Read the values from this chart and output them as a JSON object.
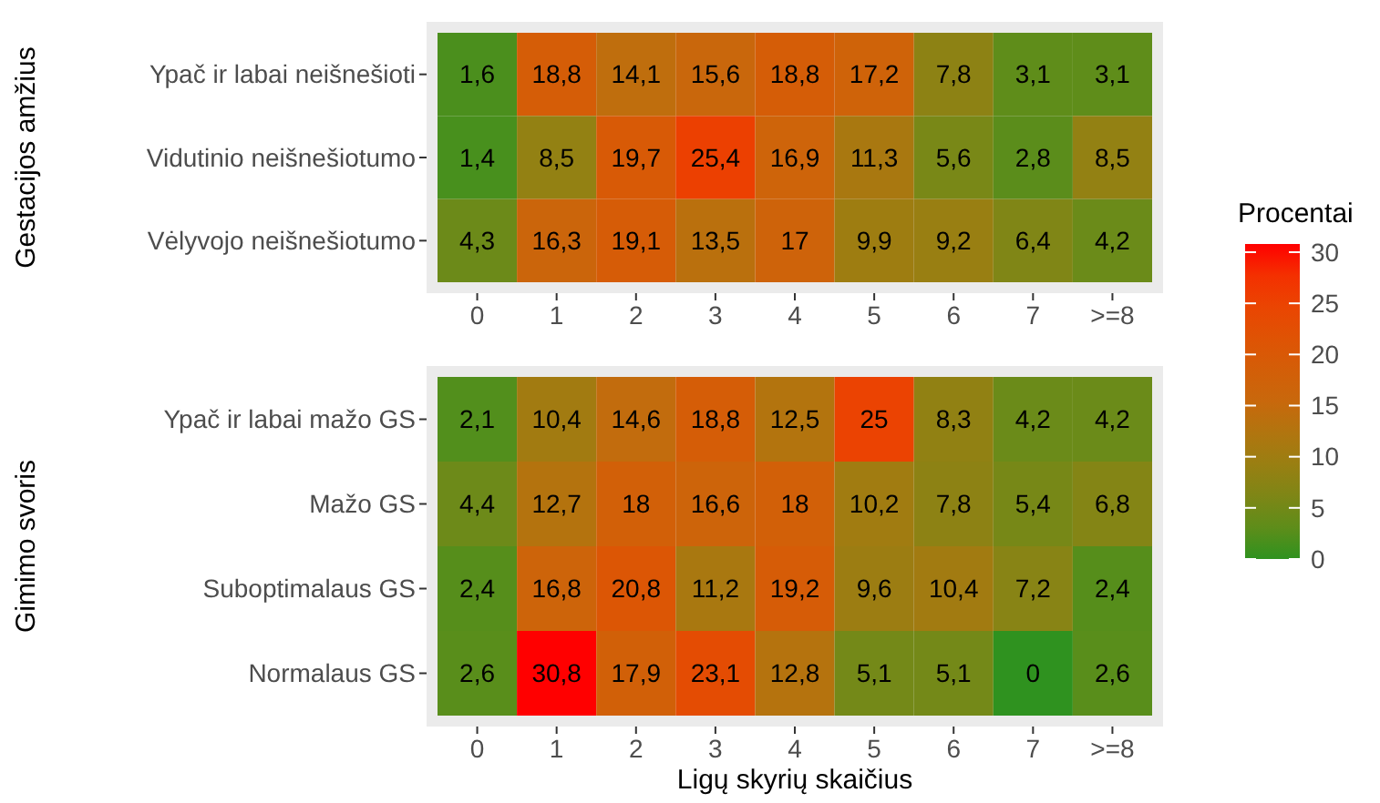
{
  "chart_data": [
    {
      "type": "heatmap",
      "ylabel": "Gestacijos amžius",
      "clabel": "Procentai",
      "clim": [
        0,
        30.8
      ],
      "cticks": [
        0,
        5,
        10,
        15,
        20,
        25,
        30
      ],
      "categories": [
        "0",
        "1",
        "2",
        "3",
        "4",
        "5",
        "6",
        "7",
        ">=8"
      ],
      "y_categories": [
        "Ypač ir labai neišnešioti",
        "Vidutinio neišnešiotumo",
        "Vėlyvojo neišnešiotumo"
      ],
      "cells": [
        [
          1.6,
          18.8,
          14.1,
          15.6,
          18.8,
          17.2,
          7.8,
          3.1,
          3.1
        ],
        [
          1.4,
          8.5,
          19.7,
          25.4,
          16.9,
          11.3,
          5.6,
          2.8,
          8.5
        ],
        [
          4.3,
          16.3,
          19.1,
          13.5,
          17,
          9.9,
          9.2,
          6.4,
          4.2
        ]
      ],
      "cell_labels": [
        [
          "1,6",
          "18,8",
          "14,1",
          "15,6",
          "18,8",
          "17,2",
          "7,8",
          "3,1",
          "3,1"
        ],
        [
          "1,4",
          "8,5",
          "19,7",
          "25,4",
          "16,9",
          "11,3",
          "5,6",
          "2,8",
          "8,5"
        ],
        [
          "4,3",
          "16,3",
          "19,1",
          "13,5",
          "17",
          "9,9",
          "9,2",
          "6,4",
          "4,2"
        ]
      ]
    },
    {
      "type": "heatmap",
      "ylabel": "Gimimo svoris",
      "xlabel": "Ligų skyrių skaičius",
      "categories": [
        "0",
        "1",
        "2",
        "3",
        "4",
        "5",
        "6",
        "7",
        ">=8"
      ],
      "y_categories": [
        "Ypač ir labai mažo GS",
        "Mažo GS",
        "Suboptimalaus GS",
        "Normalaus GS"
      ],
      "cells": [
        [
          2.1,
          10.4,
          14.6,
          18.8,
          12.5,
          25,
          8.3,
          4.2,
          4.2
        ],
        [
          4.4,
          12.7,
          18,
          16.6,
          18,
          10.2,
          7.8,
          5.4,
          6.8
        ],
        [
          2.4,
          16.8,
          20.8,
          11.2,
          19.2,
          9.6,
          10.4,
          7.2,
          2.4
        ],
        [
          2.6,
          30.8,
          17.9,
          23.1,
          12.8,
          5.1,
          5.1,
          0,
          2.6
        ]
      ],
      "cell_labels": [
        [
          "2,1",
          "10,4",
          "14,6",
          "18,8",
          "12,5",
          "25",
          "8,3",
          "4,2",
          "4,2"
        ],
        [
          "4,4",
          "12,7",
          "18",
          "16,6",
          "18",
          "10,2",
          "7,8",
          "5,4",
          "6,8"
        ],
        [
          "2,4",
          "16,8",
          "20,8",
          "11,2",
          "19,2",
          "9,6",
          "10,4",
          "7,2",
          "2,4"
        ],
        [
          "2,6",
          "30,8",
          "17,9",
          "23,1",
          "12,8",
          "5,1",
          "5,1",
          "0",
          "2,6"
        ]
      ]
    }
  ]
}
